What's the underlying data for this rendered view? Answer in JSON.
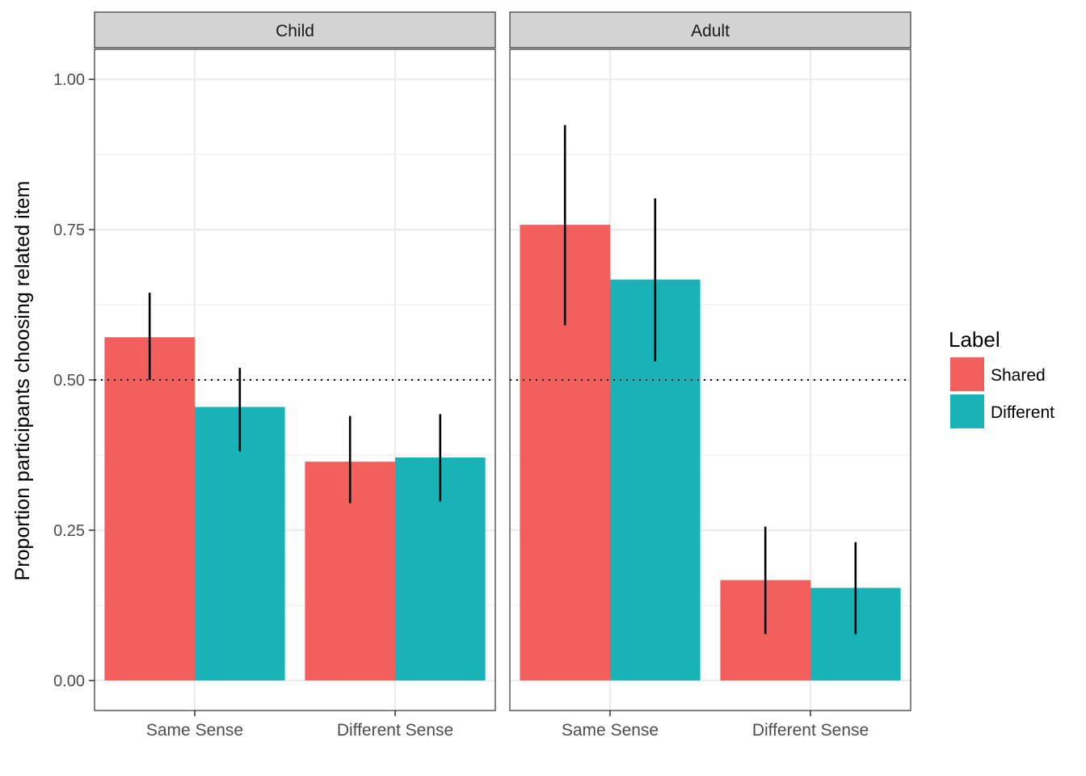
{
  "chart_data": {
    "type": "bar",
    "ylabel": "Proportion participants choosing related item",
    "ylim": [
      -0.05,
      1.05
    ],
    "yticks": [
      0,
      0.25,
      0.5,
      0.75,
      1
    ],
    "ytick_labels": [
      "0.00",
      "0.25",
      "0.50",
      "0.75",
      "1.00"
    ],
    "reference_line": {
      "y": 0.5,
      "style": "dotted"
    },
    "categories": [
      "Same Sense",
      "Different Sense"
    ],
    "legend": {
      "title": "Label",
      "position": "right",
      "items": [
        {
          "name": "Shared",
          "color": "#F25F5C"
        },
        {
          "name": "Different",
          "color": "#19B2B6"
        }
      ]
    },
    "facets": [
      {
        "title": "Child",
        "series": [
          {
            "name": "Shared",
            "values": [
              0.571,
              0.364
            ],
            "error_low": [
              0.5,
              0.295
            ],
            "error_high": [
              0.645,
              0.44
            ]
          },
          {
            "name": "Different",
            "values": [
              0.455,
              0.371
            ],
            "error_low": [
              0.381,
              0.298
            ],
            "error_high": [
              0.52,
              0.443
            ]
          }
        ]
      },
      {
        "title": "Adult",
        "series": [
          {
            "name": "Shared",
            "values": [
              0.758,
              0.167
            ],
            "error_low": [
              0.591,
              0.077
            ],
            "error_high": [
              0.924,
              0.256
            ]
          },
          {
            "name": "Different",
            "values": [
              0.667,
              0.154
            ],
            "error_low": [
              0.531,
              0.077
            ],
            "error_high": [
              0.802,
              0.23
            ]
          }
        ]
      }
    ]
  }
}
